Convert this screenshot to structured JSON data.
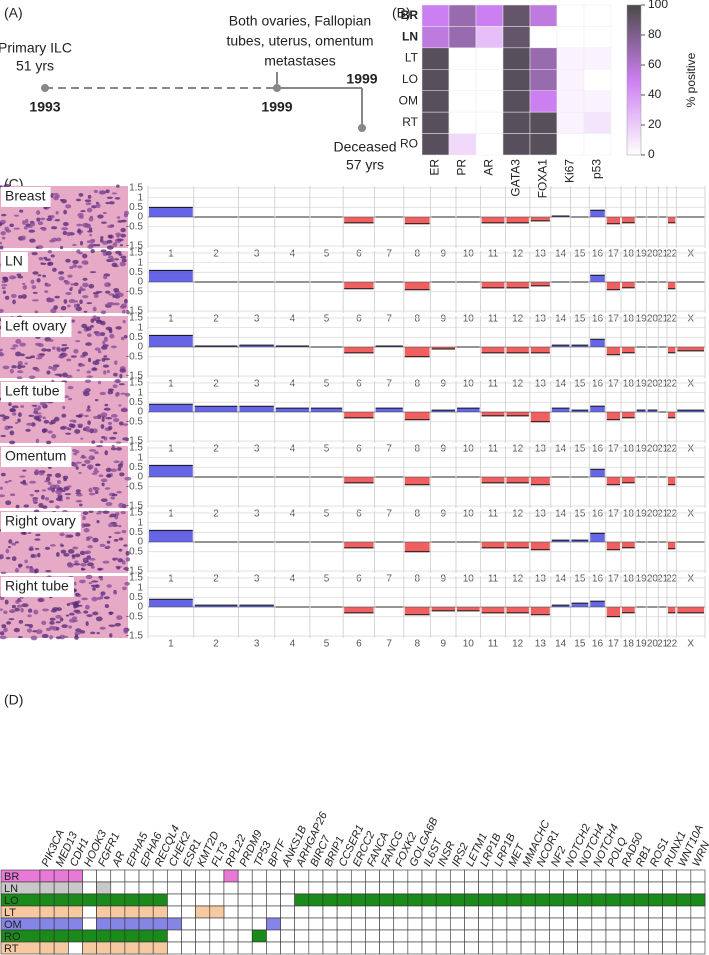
{
  "panels": [
    "(A)",
    "(B)",
    "(C)",
    "(D)"
  ],
  "timeline": {
    "events": [
      {
        "year": "1993",
        "lines": [
          "Primary ILC",
          "51 yrs"
        ]
      },
      {
        "year": "1999",
        "lines": [
          "Both ovaries, Fallopian",
          "tubes, uterus, omentum",
          "metastases"
        ]
      },
      {
        "year": "1999",
        "lines": [
          "Deceased",
          "57 yrs"
        ]
      }
    ]
  },
  "chart_data": [
    {
      "type": "heatmap",
      "rows": [
        "BR",
        "LN",
        "LT",
        "LO",
        "OM",
        "RT",
        "RO"
      ],
      "bold_rows": [
        0,
        1
      ],
      "columns": [
        "ER",
        "PR",
        "AR",
        "GATA3",
        "FOXA1",
        "Ki67",
        "p53"
      ],
      "values": [
        [
          50,
          70,
          50,
          90,
          55,
          0,
          0
        ],
        [
          55,
          70,
          25,
          90,
          0,
          0,
          0
        ],
        [
          95,
          0,
          0,
          95,
          70,
          5,
          5
        ],
        [
          95,
          0,
          0,
          95,
          70,
          5,
          0
        ],
        [
          95,
          0,
          0,
          95,
          50,
          5,
          5
        ],
        [
          95,
          0,
          0,
          95,
          95,
          5,
          10
        ],
        [
          95,
          15,
          0,
          95,
          95,
          0,
          0
        ]
      ],
      "vlim": [
        0,
        100
      ],
      "colorbar_ticks": [
        0,
        20,
        40,
        60,
        80,
        100
      ],
      "colorbar_label": "% positive"
    },
    {
      "type": "bar",
      "title": "Breast",
      "categories": [
        "1",
        "2",
        "3",
        "4",
        "5",
        "6",
        "7",
        "8",
        "9",
        "10",
        "11",
        "12",
        "13",
        "14",
        "15",
        "16",
        "17",
        "18",
        "19",
        "20",
        "21",
        "22",
        "X"
      ],
      "values": [
        0.5,
        0,
        0,
        0,
        0,
        -0.3,
        0,
        -0.35,
        0,
        0,
        -0.3,
        -0.3,
        -0.2,
        0.05,
        0,
        0.35,
        -0.35,
        -0.3,
        0,
        0,
        0,
        -0.3,
        0
      ],
      "ylim": [
        -1.6,
        1.6
      ],
      "yticks": [
        1.5,
        1,
        0.5,
        0,
        -0.5,
        -1.5
      ],
      "gain_color": "#4a4ae0",
      "loss_color": "#ee4444"
    },
    {
      "type": "bar",
      "title": "LN",
      "categories": [
        "1",
        "2",
        "3",
        "4",
        "5",
        "6",
        "7",
        "8",
        "9",
        "10",
        "11",
        "12",
        "13",
        "14",
        "15",
        "16",
        "17",
        "18",
        "19",
        "20",
        "21",
        "22",
        "X"
      ],
      "values": [
        0.6,
        0,
        0,
        0,
        0,
        -0.35,
        0,
        -0.4,
        0,
        0,
        -0.3,
        -0.3,
        -0.2,
        0,
        0,
        0.35,
        -0.4,
        -0.3,
        0,
        0,
        0,
        -0.35,
        0
      ],
      "ylim": [
        -1.6,
        1.6
      ],
      "yticks": [
        1.5,
        1,
        0.5,
        0,
        -0.5,
        -1.5
      ],
      "gain_color": "#4a4ae0",
      "loss_color": "#ee4444"
    },
    {
      "type": "bar",
      "title": "Left ovary",
      "categories": [
        "1",
        "2",
        "3",
        "4",
        "5",
        "6",
        "7",
        "8",
        "9",
        "10",
        "11",
        "12",
        "13",
        "14",
        "15",
        "16",
        "17",
        "18",
        "19",
        "20",
        "21",
        "22",
        "X"
      ],
      "values": [
        0.6,
        0.05,
        0.1,
        0.05,
        0,
        -0.3,
        0.05,
        -0.5,
        -0.1,
        0,
        -0.3,
        -0.3,
        -0.3,
        0.1,
        0.1,
        0.4,
        -0.4,
        -0.3,
        0,
        0,
        0,
        -0.3,
        -0.2
      ],
      "ylim": [
        -1.6,
        1.6
      ],
      "yticks": [
        1.5,
        1,
        0.5,
        0,
        -0.5,
        -1.5
      ],
      "gain_color": "#4a4ae0",
      "loss_color": "#ee4444"
    },
    {
      "type": "bar",
      "title": "Left tube",
      "categories": [
        "1",
        "2",
        "3",
        "4",
        "5",
        "6",
        "7",
        "8",
        "9",
        "10",
        "11",
        "12",
        "13",
        "14",
        "15",
        "16",
        "17",
        "18",
        "19",
        "20",
        "21",
        "22",
        "X"
      ],
      "values": [
        0.4,
        0.3,
        0.3,
        0.2,
        0.2,
        -0.3,
        0.2,
        -0.4,
        0.1,
        0.2,
        -0.2,
        -0.2,
        -0.5,
        0.2,
        0.1,
        0.3,
        -0.4,
        -0.3,
        0.1,
        0.1,
        0,
        -0.3,
        0.1
      ],
      "ylim": [
        -1.6,
        1.6
      ],
      "yticks": [
        1.5,
        1,
        0.5,
        0,
        -0.5,
        -1.5
      ],
      "gain_color": "#4a4ae0",
      "loss_color": "#ee4444"
    },
    {
      "type": "bar",
      "title": "Omentum",
      "categories": [
        "1",
        "2",
        "3",
        "4",
        "5",
        "6",
        "7",
        "8",
        "9",
        "10",
        "11",
        "12",
        "13",
        "14",
        "15",
        "16",
        "17",
        "18",
        "19",
        "20",
        "21",
        "22",
        "X"
      ],
      "values": [
        0.6,
        0,
        0,
        0,
        0,
        -0.3,
        0,
        -0.4,
        0,
        0,
        -0.3,
        -0.3,
        -0.4,
        0,
        0,
        0.4,
        -0.4,
        -0.3,
        0,
        0,
        0,
        -0.4,
        0
      ],
      "ylim": [
        -1.6,
        1.6
      ],
      "yticks": [
        1.5,
        1,
        0.5,
        0,
        -0.5,
        -1.5
      ],
      "gain_color": "#4a4ae0",
      "loss_color": "#ee4444"
    },
    {
      "type": "bar",
      "title": "Right ovary",
      "categories": [
        "1",
        "2",
        "3",
        "4",
        "5",
        "6",
        "7",
        "8",
        "9",
        "10",
        "11",
        "12",
        "13",
        "14",
        "15",
        "16",
        "17",
        "18",
        "19",
        "20",
        "21",
        "22",
        "X"
      ],
      "values": [
        0.6,
        0,
        0,
        0,
        0,
        -0.3,
        0,
        -0.5,
        0,
        0,
        -0.3,
        -0.3,
        -0.4,
        0.1,
        0.1,
        0.45,
        -0.4,
        -0.3,
        0,
        0,
        0,
        -0.35,
        0
      ],
      "ylim": [
        -1.6,
        1.6
      ],
      "yticks": [
        1.5,
        1,
        0.5,
        0,
        -0.5,
        -1.5
      ],
      "gain_color": "#4a4ae0",
      "loss_color": "#ee4444"
    },
    {
      "type": "bar",
      "title": "Right tube",
      "categories": [
        "1",
        "2",
        "3",
        "4",
        "5",
        "6",
        "7",
        "8",
        "9",
        "10",
        "11",
        "12",
        "13",
        "14",
        "15",
        "16",
        "17",
        "18",
        "19",
        "20",
        "21",
        "22",
        "X"
      ],
      "values": [
        0.4,
        0.1,
        0.1,
        0,
        0,
        -0.3,
        0,
        -0.4,
        -0.2,
        -0.2,
        -0.3,
        -0.3,
        -0.4,
        0.1,
        0.2,
        0.3,
        -0.5,
        -0.3,
        0,
        0,
        0,
        -0.3,
        -0.3
      ],
      "ylim": [
        -1.6,
        1.6
      ],
      "yticks": [
        1.5,
        1,
        0.5,
        0,
        -0.5,
        -1.5
      ],
      "gain_color": "#4a4ae0",
      "loss_color": "#ee4444"
    }
  ],
  "mutations": {
    "genes": [
      "PIK3CA",
      "MED13",
      "CDH1",
      "HOOK3",
      "FGFR1",
      "AR",
      "EPHA5",
      "EPHA6",
      "RECQL4",
      "CHEK2",
      "ESR1",
      "KMT2D",
      "FLT3",
      "RPL22",
      "PRDM9",
      "TP53",
      "BPTF",
      "ANKS1B",
      "ARHGAP26",
      "BIRC7",
      "BRIP1",
      "CCSER1",
      "ERCC2",
      "FANCA",
      "FANCG",
      "FOXK2",
      "GOLGA6B",
      "IL6ST",
      "INSR",
      "IRS2",
      "LETM1",
      "LRP1B",
      "LRP1B",
      "MET",
      "MMACHC",
      "NCOR1",
      "NF2",
      "NOTCH2",
      "NOTCH4",
      "NOTCH4",
      "POLQ",
      "RAD50",
      "RB1",
      "ROS1",
      "RUNX1",
      "WNT10A",
      "WRN"
    ],
    "rows": [
      {
        "name": "BR",
        "color": "#e879d6",
        "mutated": [
          0,
          1,
          2,
          13
        ]
      },
      {
        "name": "LN",
        "color": "#c8c8c8",
        "mutated": [
          0,
          1,
          2,
          4
        ]
      },
      {
        "name": "LO",
        "color": "#1a8a1a",
        "mutated": [
          0,
          1,
          2,
          3,
          4,
          5,
          6,
          7,
          8,
          18,
          19,
          20,
          21,
          22,
          23,
          24,
          25,
          26,
          27,
          28,
          29,
          30,
          31,
          32,
          33,
          34,
          35,
          36,
          37,
          38,
          39,
          40,
          41,
          42,
          43,
          44,
          45,
          46
        ]
      },
      {
        "name": "LT",
        "color": "#f7c9a0",
        "mutated": [
          0,
          1,
          2,
          4,
          5,
          6,
          7,
          8,
          11,
          12
        ]
      },
      {
        "name": "OM",
        "color": "#8585e8",
        "mutated": [
          0,
          1,
          2,
          4,
          5,
          6,
          7,
          8,
          9,
          16
        ]
      },
      {
        "name": "RO",
        "color": "#1a8a1a",
        "mutated": [
          0,
          1,
          2,
          3,
          4,
          5,
          6,
          7,
          8,
          15
        ]
      },
      {
        "name": "RT",
        "color": "#f7c9a0",
        "mutated": [
          0,
          1,
          3,
          4,
          5,
          6,
          7,
          8
        ]
      }
    ]
  }
}
